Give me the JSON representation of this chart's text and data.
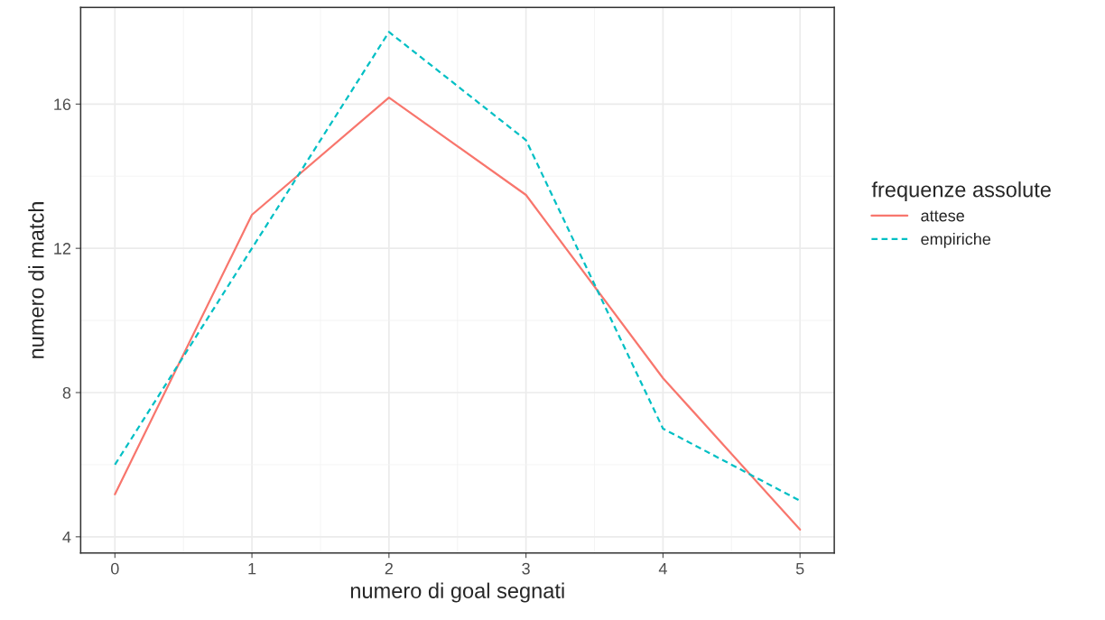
{
  "chart_data": {
    "type": "line",
    "xlabel": "numero di goal segnati",
    "ylabel": "numero di match",
    "legend_title": "frequenze assolute",
    "x": [
      0,
      1,
      2,
      3,
      4,
      5
    ],
    "series": [
      {
        "name": "attese",
        "color": "#f8766d",
        "line_style": "solid",
        "values": [
          5.18,
          12.93,
          16.18,
          13.48,
          8.4,
          4.2
        ]
      },
      {
        "name": "empiriche",
        "color": "#00bfc4",
        "line_style": "dashed",
        "values": [
          6,
          12,
          18,
          15,
          7,
          5
        ]
      }
    ],
    "xlim": [
      -0.25,
      5.25
    ],
    "ylim": [
      3.55,
      18.68
    ],
    "xticks": [
      0,
      1,
      2,
      3,
      4,
      5
    ],
    "yticks": [
      4,
      8,
      12,
      16
    ],
    "grid": true,
    "legend": "right",
    "marker": "none"
  }
}
